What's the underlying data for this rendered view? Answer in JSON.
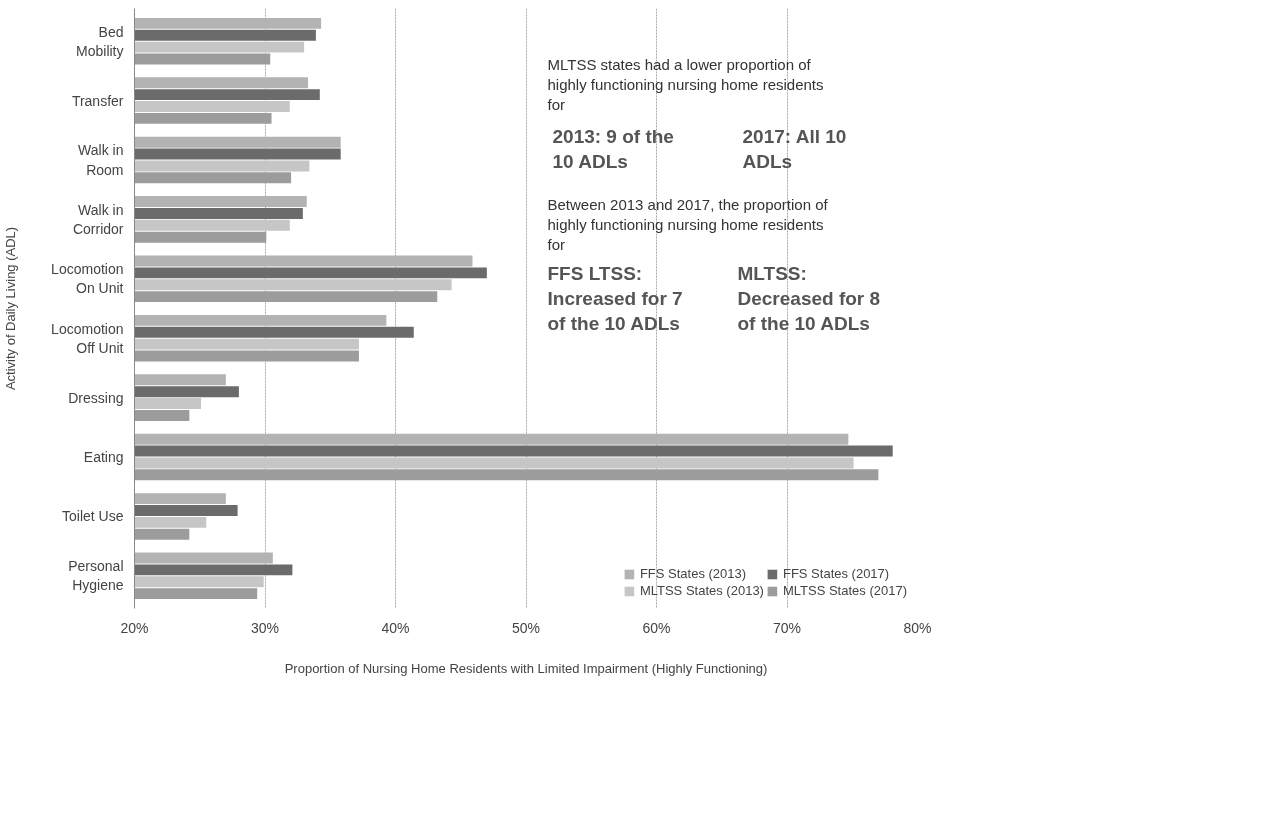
{
  "chart_data": {
    "type": "bar",
    "orientation": "horizontal",
    "xlabel": "Proportion of Nursing Home Residents with Limited Impairment (Highly Functioning)",
    "ylabel": "Activity of Daily Living (ADL)",
    "categories": [
      "Bed Mobility",
      "Transfer",
      "Walk in Room",
      "Walk in Corridor",
      "Locomotion On Unit",
      "Locomotion Off Unit",
      "Dressing",
      "Eating",
      "Toilet Use",
      "Personal Hygiene"
    ],
    "series": [
      {
        "name": "FFS States (2013)",
        "color": "#b3b3b3",
        "values": [
          34.3,
          33.3,
          35.8,
          33.2,
          45.9,
          39.3,
          27.0,
          74.7,
          27.0,
          30.6
        ]
      },
      {
        "name": "FFS States (2017)",
        "color": "#6b6b6b",
        "values": [
          33.9,
          34.2,
          35.8,
          32.9,
          47.0,
          41.4,
          28.0,
          78.1,
          27.9,
          32.1
        ]
      },
      {
        "name": "MLTSS States (2013)",
        "color": "#c6c6c6",
        "values": [
          33.0,
          31.9,
          33.4,
          31.9,
          44.3,
          37.2,
          25.1,
          75.1,
          25.5,
          29.9
        ]
      },
      {
        "name": "MLTSS States (2017)",
        "color": "#9c9c9c",
        "values": [
          30.4,
          30.5,
          32.0,
          30.1,
          43.2,
          37.2,
          24.2,
          77.0,
          24.2,
          29.4
        ]
      }
    ],
    "xlim": [
      20,
      80
    ],
    "xticks": [
      {
        "value": 20,
        "label": "20%"
      },
      {
        "value": 30,
        "label": "30%"
      },
      {
        "value": 40,
        "label": "40%"
      },
      {
        "value": 50,
        "label": "50%"
      },
      {
        "value": 60,
        "label": "60%"
      },
      {
        "value": 70,
        "label": "70%"
      },
      {
        "value": 80,
        "label": "80%"
      }
    ],
    "grid": "x",
    "legend": "bottom right",
    "annotations": [
      "MLTSS states had a lower proportion of highly functioning nursing home residents for",
      "2013: 9 of the 10 ADLs",
      "2017: All 10 ADLs",
      "Between 2013 and 2017, the proportion of highly functioning nursing home residents for",
      "FFS LTSS: Increased for 7 of the 10 ADLs",
      "MLTSS: Decreased for 8 of the 10 ADLs"
    ]
  }
}
